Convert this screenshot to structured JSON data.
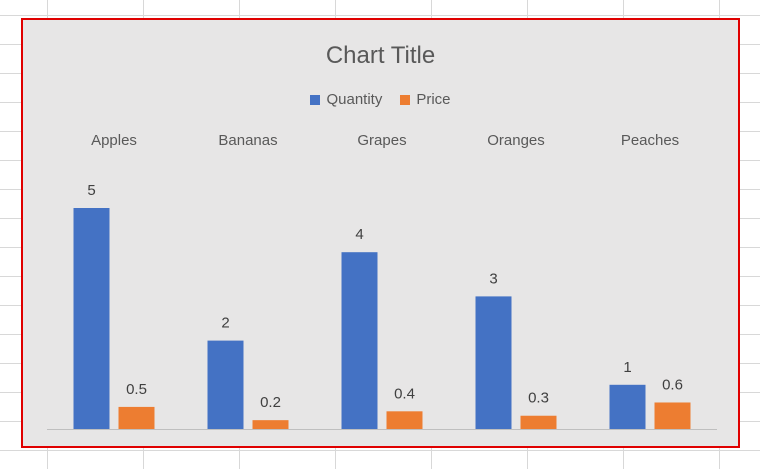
{
  "chart_data": {
    "type": "bar",
    "title": "Chart Title",
    "categories": [
      "Apples",
      "Bananas",
      "Grapes",
      "Oranges",
      "Peaches"
    ],
    "series": [
      {
        "name": "Quantity",
        "values": [
          5,
          2,
          4,
          3,
          1
        ],
        "color": "#4472C4"
      },
      {
        "name": "Price",
        "values": [
          0.5,
          0.2,
          0.4,
          0.3,
          0.6
        ],
        "color": "#ED7D31"
      }
    ],
    "ylim": [
      0,
      5
    ],
    "grid": false,
    "legend_position": "top",
    "category_label_position": "top",
    "data_labels": true,
    "border_color": "#E00000",
    "plot_background": "#E7E6E6"
  }
}
